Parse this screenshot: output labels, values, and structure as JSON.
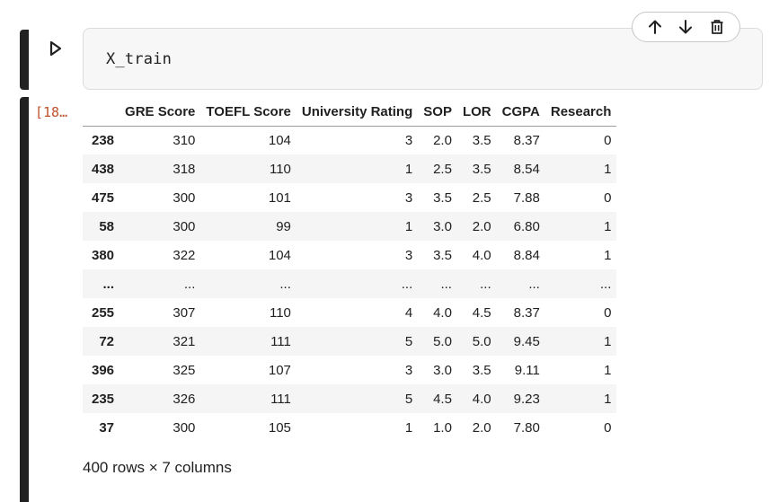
{
  "code_cell": {
    "code": "X_train"
  },
  "toolbar": {
    "icons": [
      "arrow-up-icon",
      "arrow-down-icon",
      "trash-icon"
    ]
  },
  "output": {
    "execution_count": "[18…",
    "columns": [
      "",
      "GRE Score",
      "TOEFL Score",
      "University Rating",
      "SOP",
      "LOR",
      "CGPA",
      "Research"
    ],
    "rows": [
      [
        "238",
        "310",
        "104",
        "3",
        "2.0",
        "3.5",
        "8.37",
        "0"
      ],
      [
        "438",
        "318",
        "110",
        "1",
        "2.5",
        "3.5",
        "8.54",
        "1"
      ],
      [
        "475",
        "300",
        "101",
        "3",
        "3.5",
        "2.5",
        "7.88",
        "0"
      ],
      [
        "58",
        "300",
        "99",
        "1",
        "3.0",
        "2.0",
        "6.80",
        "1"
      ],
      [
        "380",
        "322",
        "104",
        "3",
        "3.5",
        "4.0",
        "8.84",
        "1"
      ],
      [
        "...",
        "...",
        "...",
        "...",
        "...",
        "...",
        "...",
        "..."
      ],
      [
        "255",
        "307",
        "110",
        "4",
        "4.0",
        "4.5",
        "8.37",
        "0"
      ],
      [
        "72",
        "321",
        "111",
        "5",
        "5.0",
        "5.0",
        "9.45",
        "1"
      ],
      [
        "396",
        "325",
        "107",
        "3",
        "3.0",
        "3.5",
        "9.11",
        "1"
      ],
      [
        "235",
        "326",
        "111",
        "5",
        "4.5",
        "4.0",
        "9.23",
        "1"
      ],
      [
        "37",
        "300",
        "105",
        "1",
        "1.0",
        "2.0",
        "7.80",
        "0"
      ]
    ],
    "shape_note": "400 rows × 7 columns"
  }
}
